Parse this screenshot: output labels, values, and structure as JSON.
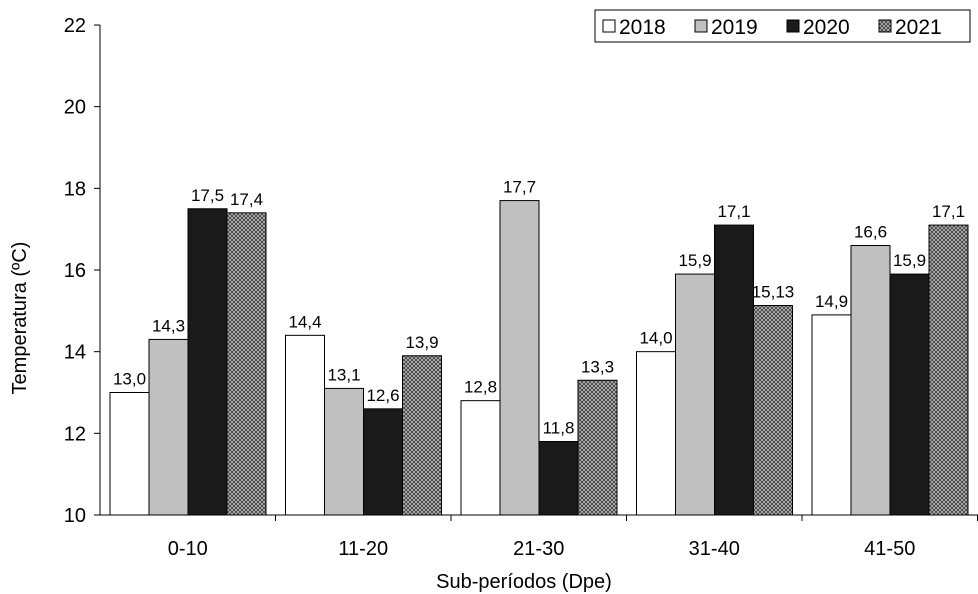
{
  "chart_data": {
    "type": "bar",
    "title": "",
    "xlabel": "Sub-períodos (Dpe)",
    "ylabel": "Temperatura (ºC)",
    "ylim": [
      10,
      22
    ],
    "yticks": [
      "10",
      "12",
      "14",
      "16",
      "18",
      "20",
      "22"
    ],
    "categories": [
      "0-10",
      "11-20",
      "21-30",
      "31-40",
      "41-50"
    ],
    "series": [
      {
        "name": "2018",
        "values": [
          13.0,
          14.4,
          12.8,
          14.0,
          14.9
        ],
        "labels": [
          "13,0",
          "14,4",
          "12,8",
          "14,0",
          "14,9"
        ],
        "color": "#ffffff",
        "pattern": "solid"
      },
      {
        "name": "2019",
        "values": [
          14.3,
          13.1,
          17.7,
          15.9,
          16.6
        ],
        "labels": [
          "14,3",
          "13,1",
          "17,7",
          "15,9",
          "16,6"
        ],
        "color": "#c0c0c0",
        "pattern": "solid"
      },
      {
        "name": "2020",
        "values": [
          17.5,
          12.6,
          11.8,
          17.1,
          15.9
        ],
        "labels": [
          "17,5",
          "12,6",
          "11,8",
          "17,1",
          "15,9"
        ],
        "color": "#1a1a1a",
        "pattern": "solid"
      },
      {
        "name": "2021",
        "values": [
          17.4,
          13.9,
          13.3,
          15.13,
          17.1
        ],
        "labels": [
          "17,4",
          "13,9",
          "13,3",
          "15,13",
          "17,1"
        ],
        "color": "#8c8c8c",
        "pattern": "crosshatch"
      }
    ],
    "legend": {
      "position": "top-right",
      "orientation": "horizontal"
    },
    "grid": false
  }
}
